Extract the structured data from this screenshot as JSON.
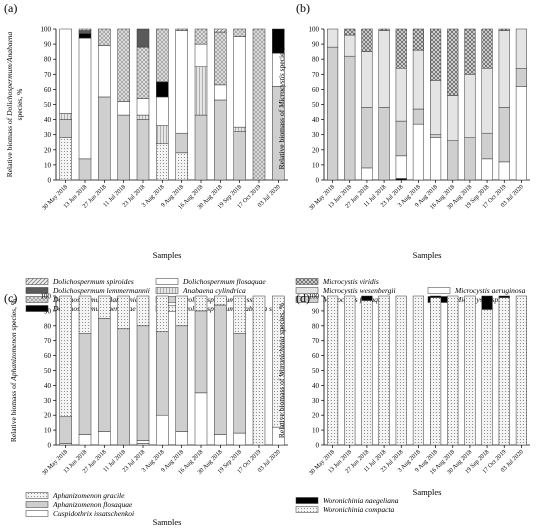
{
  "figure": {
    "samples": [
      "30 May 2018",
      "13 Jun 2018",
      "27 Jun 2018",
      "11 Jul 2018",
      "23 Jul 2018",
      "3 Aug 2018",
      "9 Aug 2018",
      "16 Aug 2018",
      "30 Aug 2018",
      "19 Sep 2018",
      "17 Oct 2019",
      "03 Jul 2020"
    ],
    "yticks": [
      "0",
      "10",
      "20",
      "30",
      "40",
      "50",
      "60",
      "70",
      "80",
      "90",
      "100"
    ]
  },
  "chart_data": [
    {
      "panel": "(a)",
      "type": "bar",
      "stacked": true,
      "ylabel_prefix": "Relative biomass of ",
      "ylabel_italic": "Dolichospermum/Anabaena",
      "ylabel_line2": "species, %",
      "xlabel": "Samples",
      "ylim": [
        0,
        100
      ],
      "categories": [
        "30 May 2018",
        "13 Jun 2018",
        "27 Jun 2018",
        "11 Jul 2018",
        "23 Jul 2018",
        "3 Aug 2018",
        "9 Aug 2018",
        "16 Aug 2018",
        "30 Aug 2018",
        "19 Sep 2018",
        "17 Oct 2019",
        "03 Jul 2020"
      ],
      "series": [
        {
          "name": "Dolichospermum/Anabaena spp.",
          "pattern": "fine",
          "values": [
            28,
            0,
            0,
            0,
            0,
            24,
            18,
            0,
            0,
            0,
            0,
            0
          ]
        },
        {
          "name": "Dolichospermum crassum",
          "pattern": "grey",
          "values": [
            12,
            14,
            55,
            43,
            40,
            0,
            13,
            43,
            53,
            32,
            0,
            62
          ]
        },
        {
          "name": "Anabaena cylindrica",
          "pattern": "vline",
          "values": [
            4,
            0,
            0,
            0,
            3,
            12,
            0,
            32,
            0,
            3,
            0,
            0
          ]
        },
        {
          "name": "Dolichospermum flosaquae",
          "pattern": "white",
          "values": [
            56,
            80,
            34,
            9,
            11,
            19,
            68,
            15,
            10,
            60,
            0,
            22
          ]
        },
        {
          "name": "Dolichospermum mendotae",
          "pattern": "black",
          "values": [
            0,
            3,
            0,
            0,
            0,
            10,
            0,
            0,
            0,
            0,
            0,
            16
          ]
        },
        {
          "name": "Dolichospermum planctonicum",
          "pattern": "cross",
          "values": [
            0,
            0,
            11,
            48,
            34,
            35,
            0,
            10,
            35,
            5,
            100,
            0
          ]
        },
        {
          "name": "Dolichospermum lemmermannii",
          "pattern": "dark",
          "values": [
            0,
            2,
            0,
            0,
            12,
            0,
            0,
            0,
            0,
            0,
            0,
            0
          ]
        },
        {
          "name": "Dolichospermum spiroides",
          "pattern": "hatch",
          "values": [
            0,
            1,
            0,
            0,
            0,
            0,
            1,
            0,
            2,
            0,
            0,
            0
          ]
        }
      ],
      "legend": [
        {
          "name": "Dolichospermum spiroides",
          "pattern": "hatch",
          "col": 0,
          "row": 0
        },
        {
          "name": "Dolichospermum lemmermannii",
          "pattern": "dark",
          "col": 0,
          "row": 1
        },
        {
          "name": "Dolichospermum planctonicum",
          "pattern": "cross",
          "col": 0,
          "row": 2
        },
        {
          "name": "Dolichospermum mendotae",
          "pattern": "black",
          "col": 0,
          "row": 3
        },
        {
          "name": "Dolichospermum flosaquae",
          "pattern": "white",
          "col": 1,
          "row": 0
        },
        {
          "name": "Anabaena cylindrica",
          "pattern": "vline",
          "col": 1,
          "row": 1
        },
        {
          "name": "Dolichospermum crassum",
          "pattern": "grey",
          "col": 1,
          "row": 2
        },
        {
          "name": "Dolichospermum/Anabaena spp.",
          "pattern": "fine",
          "col": 1,
          "row": 3
        }
      ]
    },
    {
      "panel": "(b)",
      "type": "bar",
      "stacked": true,
      "ylabel_prefix": "Relative biomass of ",
      "ylabel_italic": "Microcystis",
      "ylabel_suffix": " species, %",
      "xlabel": "Samples",
      "ylim": [
        0,
        100
      ],
      "categories": [
        "30 May 2018",
        "13 Jun 2018",
        "27 Jun 2018",
        "11 Jul 2018",
        "23 Jul 2018",
        "3 Aug 2018",
        "9 Aug 2018",
        "16 Aug 2018",
        "30 Aug 2018",
        "19 Sep 2018",
        "17 Oct 2019",
        "03 Jul 2020"
      ],
      "series": [
        {
          "name": "Microcystis sp.",
          "pattern": "black",
          "values": [
            0,
            0,
            0,
            0,
            1,
            0,
            0,
            0,
            0,
            0,
            0,
            0
          ]
        },
        {
          "name": "Microcystis aeruginosa",
          "pattern": "white",
          "values": [
            0,
            0,
            8,
            0,
            15,
            37,
            28,
            0,
            0,
            14,
            12,
            62
          ]
        },
        {
          "name": "Microcystis flosaquae",
          "pattern": "grey",
          "values": [
            88,
            82,
            40,
            48,
            23,
            10,
            2,
            26,
            28,
            17,
            36,
            12
          ]
        },
        {
          "name": "Microcystis wesenbergii",
          "pattern": "light",
          "values": [
            12,
            14,
            37,
            51,
            35,
            39,
            36,
            30,
            42,
            43,
            51,
            26
          ]
        },
        {
          "name": "Microcystis viridis",
          "pattern": "check",
          "values": [
            0,
            4,
            15,
            1,
            26,
            14,
            34,
            44,
            30,
            26,
            1,
            0
          ]
        }
      ],
      "legend": [
        {
          "name": "Microcystis viridis",
          "pattern": "check",
          "col": 0,
          "row": 0
        },
        {
          "name": "Microcystis wesenbergii",
          "pattern": "light",
          "col": 0,
          "row": 1
        },
        {
          "name": "Microcystis flosaquae",
          "pattern": "grey",
          "col": 0,
          "row": 2
        },
        {
          "name": "Microcystis aeruginosa",
          "pattern": "white",
          "col": 1,
          "row": 1
        },
        {
          "name": "Microcystis sp.",
          "pattern": "black",
          "col": 1,
          "row": 2
        }
      ]
    },
    {
      "panel": "(c)",
      "type": "bar",
      "stacked": true,
      "ylabel_prefix": "Relative biomass of ",
      "ylabel_italic": "Aphanizomenon",
      "ylabel_suffix": " species, %",
      "xlabel": "Samples",
      "ylim": [
        0,
        100
      ],
      "categories": [
        "30 May 2018",
        "13 Jun 2018",
        "27 Jun 2018",
        "11 Jul 2018",
        "23 Jul 2018",
        "3 Aug 2018",
        "9 Aug 2018",
        "16 Aug 2018",
        "30 Aug 2018",
        "19 Sep 2018",
        "17 Oct 2019",
        "03 Jul 2020"
      ],
      "series": [
        {
          "name": "Aphanizomenon gracile",
          "pattern": "fine",
          "values": [
            1,
            0,
            0,
            0,
            1,
            0,
            0,
            0,
            0,
            0,
            0,
            0
          ]
        },
        {
          "name": "Cuspidothrix issatschenkoi",
          "pattern": "white",
          "values": [
            0,
            7,
            9,
            0,
            2,
            20,
            9,
            35,
            7,
            8,
            0,
            12
          ]
        },
        {
          "name": "Aphanizomenon flosaquae",
          "pattern": "grey",
          "values": [
            18,
            68,
            76,
            78,
            77,
            56,
            71,
            55,
            87,
            67,
            0,
            0
          ]
        },
        {
          "name": "Aphanizomenon gracile",
          "pattern": "fine",
          "values": [
            81,
            25,
            15,
            22,
            20,
            24,
            20,
            10,
            6,
            25,
            100,
            88
          ]
        }
      ],
      "legend": [
        {
          "name": "Aphanizomenon gracile",
          "pattern": "fine",
          "col": 0,
          "row": 0
        },
        {
          "name": "Aphanizomenon flosaquae",
          "pattern": "grey",
          "col": 0,
          "row": 1
        },
        {
          "name": "Cuspidothrix  issatschenkoi",
          "pattern": "white",
          "col": 0,
          "row": 2
        }
      ]
    },
    {
      "panel": "(d)",
      "type": "bar",
      "stacked": true,
      "ylabel_prefix": "Relative biomass of ",
      "ylabel_italic": "Woronichinia",
      "ylabel_suffix": " species, %",
      "xlabel": "Samples",
      "ylim": [
        0,
        100
      ],
      "categories": [
        "30 May 2018",
        "13 Jun 2018",
        "27 Jun 2018",
        "11 Jul 2018",
        "23 Jul 2018",
        "3 Aug 2018",
        "9 Aug 2018",
        "16 Aug 2018",
        "30 Aug 2018",
        "19 Sep 2018",
        "17 Oct 2019",
        "03 Jul 2020"
      ],
      "series": [
        {
          "name": "Woronichinia compacta",
          "pattern": "fine",
          "values": [
            100,
            100,
            97,
            100,
            100,
            100,
            99,
            100,
            100,
            91,
            99,
            100
          ]
        },
        {
          "name": "Woronichinia naegeliana",
          "pattern": "black",
          "values": [
            0,
            0,
            3,
            0,
            0,
            0,
            1,
            0,
            0,
            9,
            1,
            0
          ]
        }
      ],
      "legend": [
        {
          "name": "Woronichinia naegeliana",
          "pattern": "black",
          "col": 0,
          "row": 0
        },
        {
          "name": "Woronichinia compacta",
          "pattern": "fine",
          "col": 0,
          "row": 1
        }
      ]
    }
  ]
}
